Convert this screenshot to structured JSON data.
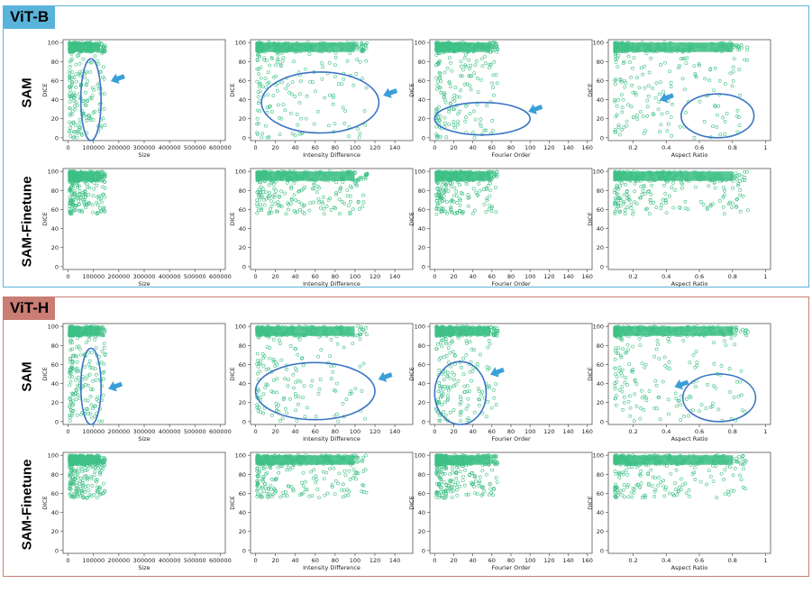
{
  "panels": [
    {
      "name": "ViT-B",
      "accent": "#5ab4da",
      "rows": [
        "SAM",
        "SAM-Finetune"
      ]
    },
    {
      "name": "ViT-H",
      "accent": "#c97d73",
      "rows": [
        "SAM",
        "SAM-Finetune"
      ]
    }
  ],
  "colors": {
    "points": "#3dbf85",
    "ellipse": "#3a75c4",
    "arrow": "#3a9fd8"
  },
  "chart_data": [
    {
      "type": "scatter",
      "panel": "ViT-B",
      "row": "SAM",
      "xlabel": "Size",
      "ylabel": "DICE",
      "xlim": [
        -20000,
        620000
      ],
      "ylim": [
        -3,
        103
      ],
      "xticks": [
        0,
        100000,
        200000,
        300000,
        400000,
        500000,
        600000
      ],
      "yticks": [
        0,
        20,
        40,
        60,
        80,
        100
      ],
      "highlight_ellipse": {
        "cx": 90000,
        "cy": 40,
        "rx": 40000,
        "ry": 43
      },
      "arrow_at": [
        175000,
        60
      ],
      "distribution": "dense near 100 DICE at all sizes; spread 0-100 for small objects (size < 150000)"
    },
    {
      "type": "scatter",
      "panel": "ViT-B",
      "row": "SAM",
      "xlabel": "Intensity Difference",
      "ylabel": "DICE",
      "xlim": [
        -5,
        158
      ],
      "ylim": [
        -3,
        103
      ],
      "xticks": [
        0,
        20,
        40,
        60,
        80,
        100,
        120,
        140
      ],
      "yticks": [
        0,
        20,
        40,
        60,
        80,
        100
      ],
      "highlight_ellipse": {
        "cx": 65,
        "cy": 37,
        "rx": 59,
        "ry": 32
      },
      "arrow_at": [
        130,
        45
      ],
      "distribution": "dense band 80-100 DICE for intensity difference 0-100; scattered low DICE at low intensity difference"
    },
    {
      "type": "scatter",
      "panel": "ViT-B",
      "row": "SAM",
      "xlabel": "Fourier Order",
      "ylabel": "DICE",
      "xlim": [
        -5,
        165
      ],
      "ylim": [
        -3,
        103
      ],
      "xticks": [
        0,
        20,
        40,
        60,
        80,
        100,
        120,
        140,
        160
      ],
      "yticks": [
        0,
        20,
        40,
        60,
        80,
        100
      ],
      "highlight_ellipse": {
        "cx": 50,
        "cy": 20,
        "rx": 50,
        "ry": 17
      },
      "arrow_at": [
        100,
        28
      ],
      "distribution": "dense 60-100 DICE for Fourier order 0-60; sparse points up to 160"
    },
    {
      "type": "scatter",
      "panel": "ViT-B",
      "row": "SAM",
      "xlabel": "Aspect Ratio",
      "ylabel": "DICE",
      "xlim": [
        0.05,
        1.03
      ],
      "ylim": [
        -3,
        103
      ],
      "xticks": [
        0.2,
        0.4,
        0.6,
        0.8,
        1.0
      ],
      "yticks": [
        0,
        20,
        40,
        60,
        80,
        100
      ],
      "highlight_ellipse": {
        "cx": 0.71,
        "cy": 23,
        "rx": 0.22,
        "ry": 23
      },
      "arrow_at": [
        0.37,
        40
      ],
      "distribution": "dense near 100 DICE for aspect ratio 0.3-1.0; scattered low DICE at high aspect ratio"
    },
    {
      "type": "scatter",
      "panel": "ViT-B",
      "row": "SAM-Finetune",
      "xlabel": "Size",
      "ylabel": "DICE",
      "xlim": [
        -20000,
        620000
      ],
      "ylim": [
        -3,
        103
      ],
      "xticks": [
        0,
        100000,
        200000,
        300000,
        400000,
        500000,
        600000
      ],
      "yticks": [
        0,
        20,
        40,
        60,
        80,
        100
      ],
      "distribution": "mostly 80-100 DICE; few low values at very small sizes"
    },
    {
      "type": "scatter",
      "panel": "ViT-B",
      "row": "SAM-Finetune",
      "xlabel": "Intensity Difference",
      "ylabel": "DICE",
      "xlim": [
        -5,
        158
      ],
      "ylim": [
        -3,
        103
      ],
      "xticks": [
        0,
        20,
        40,
        60,
        80,
        100,
        120,
        140
      ],
      "yticks": [
        0,
        20,
        40,
        60,
        80,
        100
      ],
      "distribution": "dense 70-100 DICE; sparse lower values"
    },
    {
      "type": "scatter",
      "panel": "ViT-B",
      "row": "SAM-Finetune",
      "xlabel": "Fourier Order",
      "ylabel": "DICE",
      "xlim": [
        -5,
        165
      ],
      "ylim": [
        -3,
        103
      ],
      "xticks": [
        0,
        20,
        40,
        60,
        80,
        100,
        120,
        140,
        160
      ],
      "yticks": [
        0,
        20,
        40,
        60,
        80,
        100
      ],
      "distribution": "dense 60-100 DICE for Fourier order below 60"
    },
    {
      "type": "scatter",
      "panel": "ViT-B",
      "row": "SAM-Finetune",
      "xlabel": "Aspect Ratio",
      "ylabel": "DICE",
      "xlim": [
        0.05,
        1.03
      ],
      "ylim": [
        -3,
        103
      ],
      "xticks": [
        0.2,
        0.4,
        0.6,
        0.8,
        1.0
      ],
      "yticks": [
        0,
        20,
        40,
        60,
        80,
        100
      ],
      "distribution": "dense 70-100 DICE for aspect ratio 0.3-1.0"
    },
    {
      "type": "scatter",
      "panel": "ViT-H",
      "row": "SAM",
      "xlabel": "Size",
      "ylabel": "DICE",
      "xlim": [
        -20000,
        620000
      ],
      "ylim": [
        -3,
        103
      ],
      "xticks": [
        0,
        100000,
        200000,
        300000,
        400000,
        500000,
        600000
      ],
      "yticks": [
        0,
        20,
        40,
        60,
        80,
        100
      ],
      "highlight_ellipse": {
        "cx": 90000,
        "cy": 37,
        "rx": 40000,
        "ry": 40
      },
      "arrow_at": [
        165000,
        35
      ],
      "distribution": "dense near 100 DICE; spread 0-100 for small objects"
    },
    {
      "type": "scatter",
      "panel": "ViT-H",
      "row": "SAM",
      "xlabel": "Intensity Difference",
      "ylabel": "DICE",
      "xlim": [
        -5,
        158
      ],
      "ylim": [
        -3,
        103
      ],
      "xticks": [
        0,
        20,
        40,
        60,
        80,
        100,
        120,
        140
      ],
      "yticks": [
        0,
        20,
        40,
        60,
        80,
        100
      ],
      "highlight_ellipse": {
        "cx": 60,
        "cy": 32,
        "rx": 60,
        "ry": 30
      },
      "arrow_at": [
        125,
        45
      ],
      "distribution": "dense band 80-100 DICE; scattered low DICE"
    },
    {
      "type": "scatter",
      "panel": "ViT-H",
      "row": "SAM",
      "xlabel": "Fourier Order",
      "ylabel": "DICE",
      "xlim": [
        -5,
        165
      ],
      "ylim": [
        -3,
        103
      ],
      "xticks": [
        0,
        20,
        40,
        60,
        80,
        100,
        120,
        140,
        160
      ],
      "yticks": [
        0,
        20,
        40,
        60,
        80,
        100
      ],
      "highlight_ellipse": {
        "cx": 27,
        "cy": 30,
        "rx": 27,
        "ry": 33
      },
      "arrow_at": [
        60,
        50
      ],
      "distribution": "dense 40-100 DICE at low Fourier order; trailing points to 160"
    },
    {
      "type": "scatter",
      "panel": "ViT-H",
      "row": "SAM",
      "xlabel": "Aspect Ratio",
      "ylabel": "DICE",
      "xlim": [
        0.05,
        1.03
      ],
      "ylim": [
        -3,
        103
      ],
      "xticks": [
        0.2,
        0.4,
        0.6,
        0.8,
        1.0
      ],
      "yticks": [
        0,
        20,
        40,
        60,
        80,
        100
      ],
      "highlight_ellipse": {
        "cx": 0.72,
        "cy": 25,
        "rx": 0.22,
        "ry": 25
      },
      "arrow_at": [
        0.46,
        37
      ],
      "distribution": "dense near 100 DICE; scattered low DICE at high aspect ratio"
    },
    {
      "type": "scatter",
      "panel": "ViT-H",
      "row": "SAM-Finetune",
      "xlabel": "Size",
      "ylabel": "DICE",
      "xlim": [
        -20000,
        620000
      ],
      "ylim": [
        -3,
        103
      ],
      "xticks": [
        0,
        100000,
        200000,
        300000,
        400000,
        500000,
        600000
      ],
      "yticks": [
        0,
        20,
        40,
        60,
        80,
        100
      ],
      "distribution": "mostly 80-100 DICE; few low values at very small sizes"
    },
    {
      "type": "scatter",
      "panel": "ViT-H",
      "row": "SAM-Finetune",
      "xlabel": "Intensity Difference",
      "ylabel": "DICE",
      "xlim": [
        -5,
        158
      ],
      "ylim": [
        -3,
        103
      ],
      "xticks": [
        0,
        20,
        40,
        60,
        80,
        100,
        120,
        140
      ],
      "yticks": [
        0,
        20,
        40,
        60,
        80,
        100
      ],
      "distribution": "dense 70-100 DICE; sparse lower values"
    },
    {
      "type": "scatter",
      "panel": "ViT-H",
      "row": "SAM-Finetune",
      "xlabel": "Fourier Order",
      "ylabel": "DICE",
      "xlim": [
        -5,
        165
      ],
      "ylim": [
        -3,
        103
      ],
      "xticks": [
        0,
        20,
        40,
        60,
        80,
        100,
        120,
        140,
        160
      ],
      "yticks": [
        0,
        20,
        40,
        60,
        80,
        100
      ],
      "distribution": "dense 60-100 DICE for Fourier order below 60"
    },
    {
      "type": "scatter",
      "panel": "ViT-H",
      "row": "SAM-Finetune",
      "xlabel": "Aspect Ratio",
      "ylabel": "DICE",
      "xlim": [
        0.05,
        1.03
      ],
      "ylim": [
        -3,
        103
      ],
      "xticks": [
        0.2,
        0.4,
        0.6,
        0.8,
        1.0
      ],
      "yticks": [
        0,
        20,
        40,
        60,
        80,
        100
      ],
      "distribution": "dense 70-100 DICE for aspect ratio 0.3-1.0"
    }
  ]
}
